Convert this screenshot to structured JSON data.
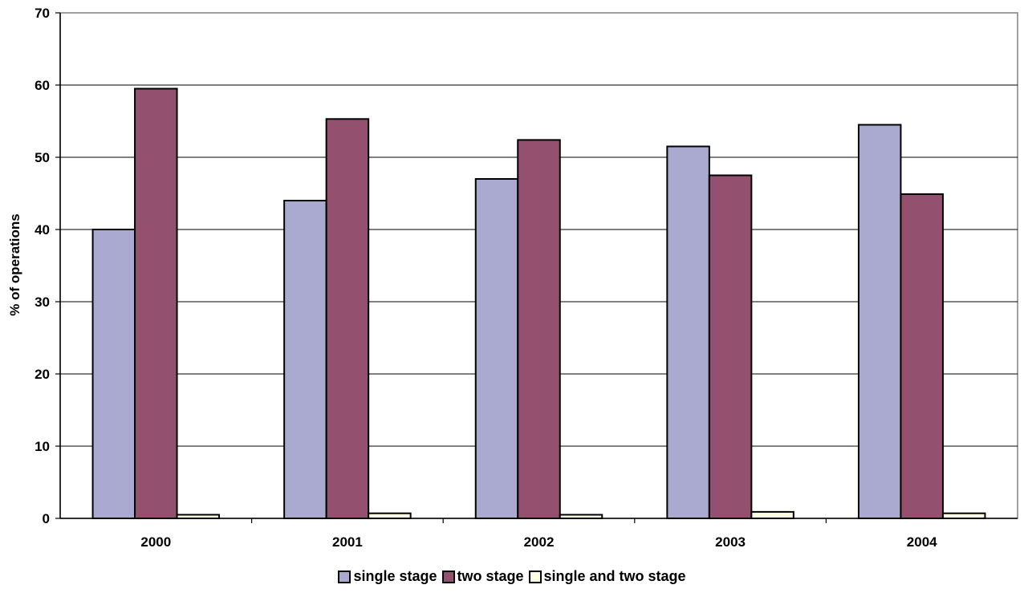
{
  "chart_data": {
    "type": "bar",
    "title": "",
    "xlabel": "",
    "ylabel": "% of operations",
    "ylim": [
      0,
      70
    ],
    "yticks": [
      0,
      10,
      20,
      30,
      40,
      50,
      60,
      70
    ],
    "grid": true,
    "legend_position": "bottom",
    "categories": [
      "2000",
      "2001",
      "2002",
      "2003",
      "2004"
    ],
    "series": [
      {
        "name": "single stage",
        "color": "#aaaad0",
        "values": [
          40,
          44,
          47,
          51.5,
          54.5
        ]
      },
      {
        "name": "two stage",
        "color": "#93506f",
        "values": [
          59.5,
          55.3,
          52.4,
          47.5,
          44.9
        ]
      },
      {
        "name": "single and two stage",
        "color": "#fffde0",
        "values": [
          0.5,
          0.7,
          0.5,
          0.9,
          0.7
        ]
      }
    ]
  }
}
